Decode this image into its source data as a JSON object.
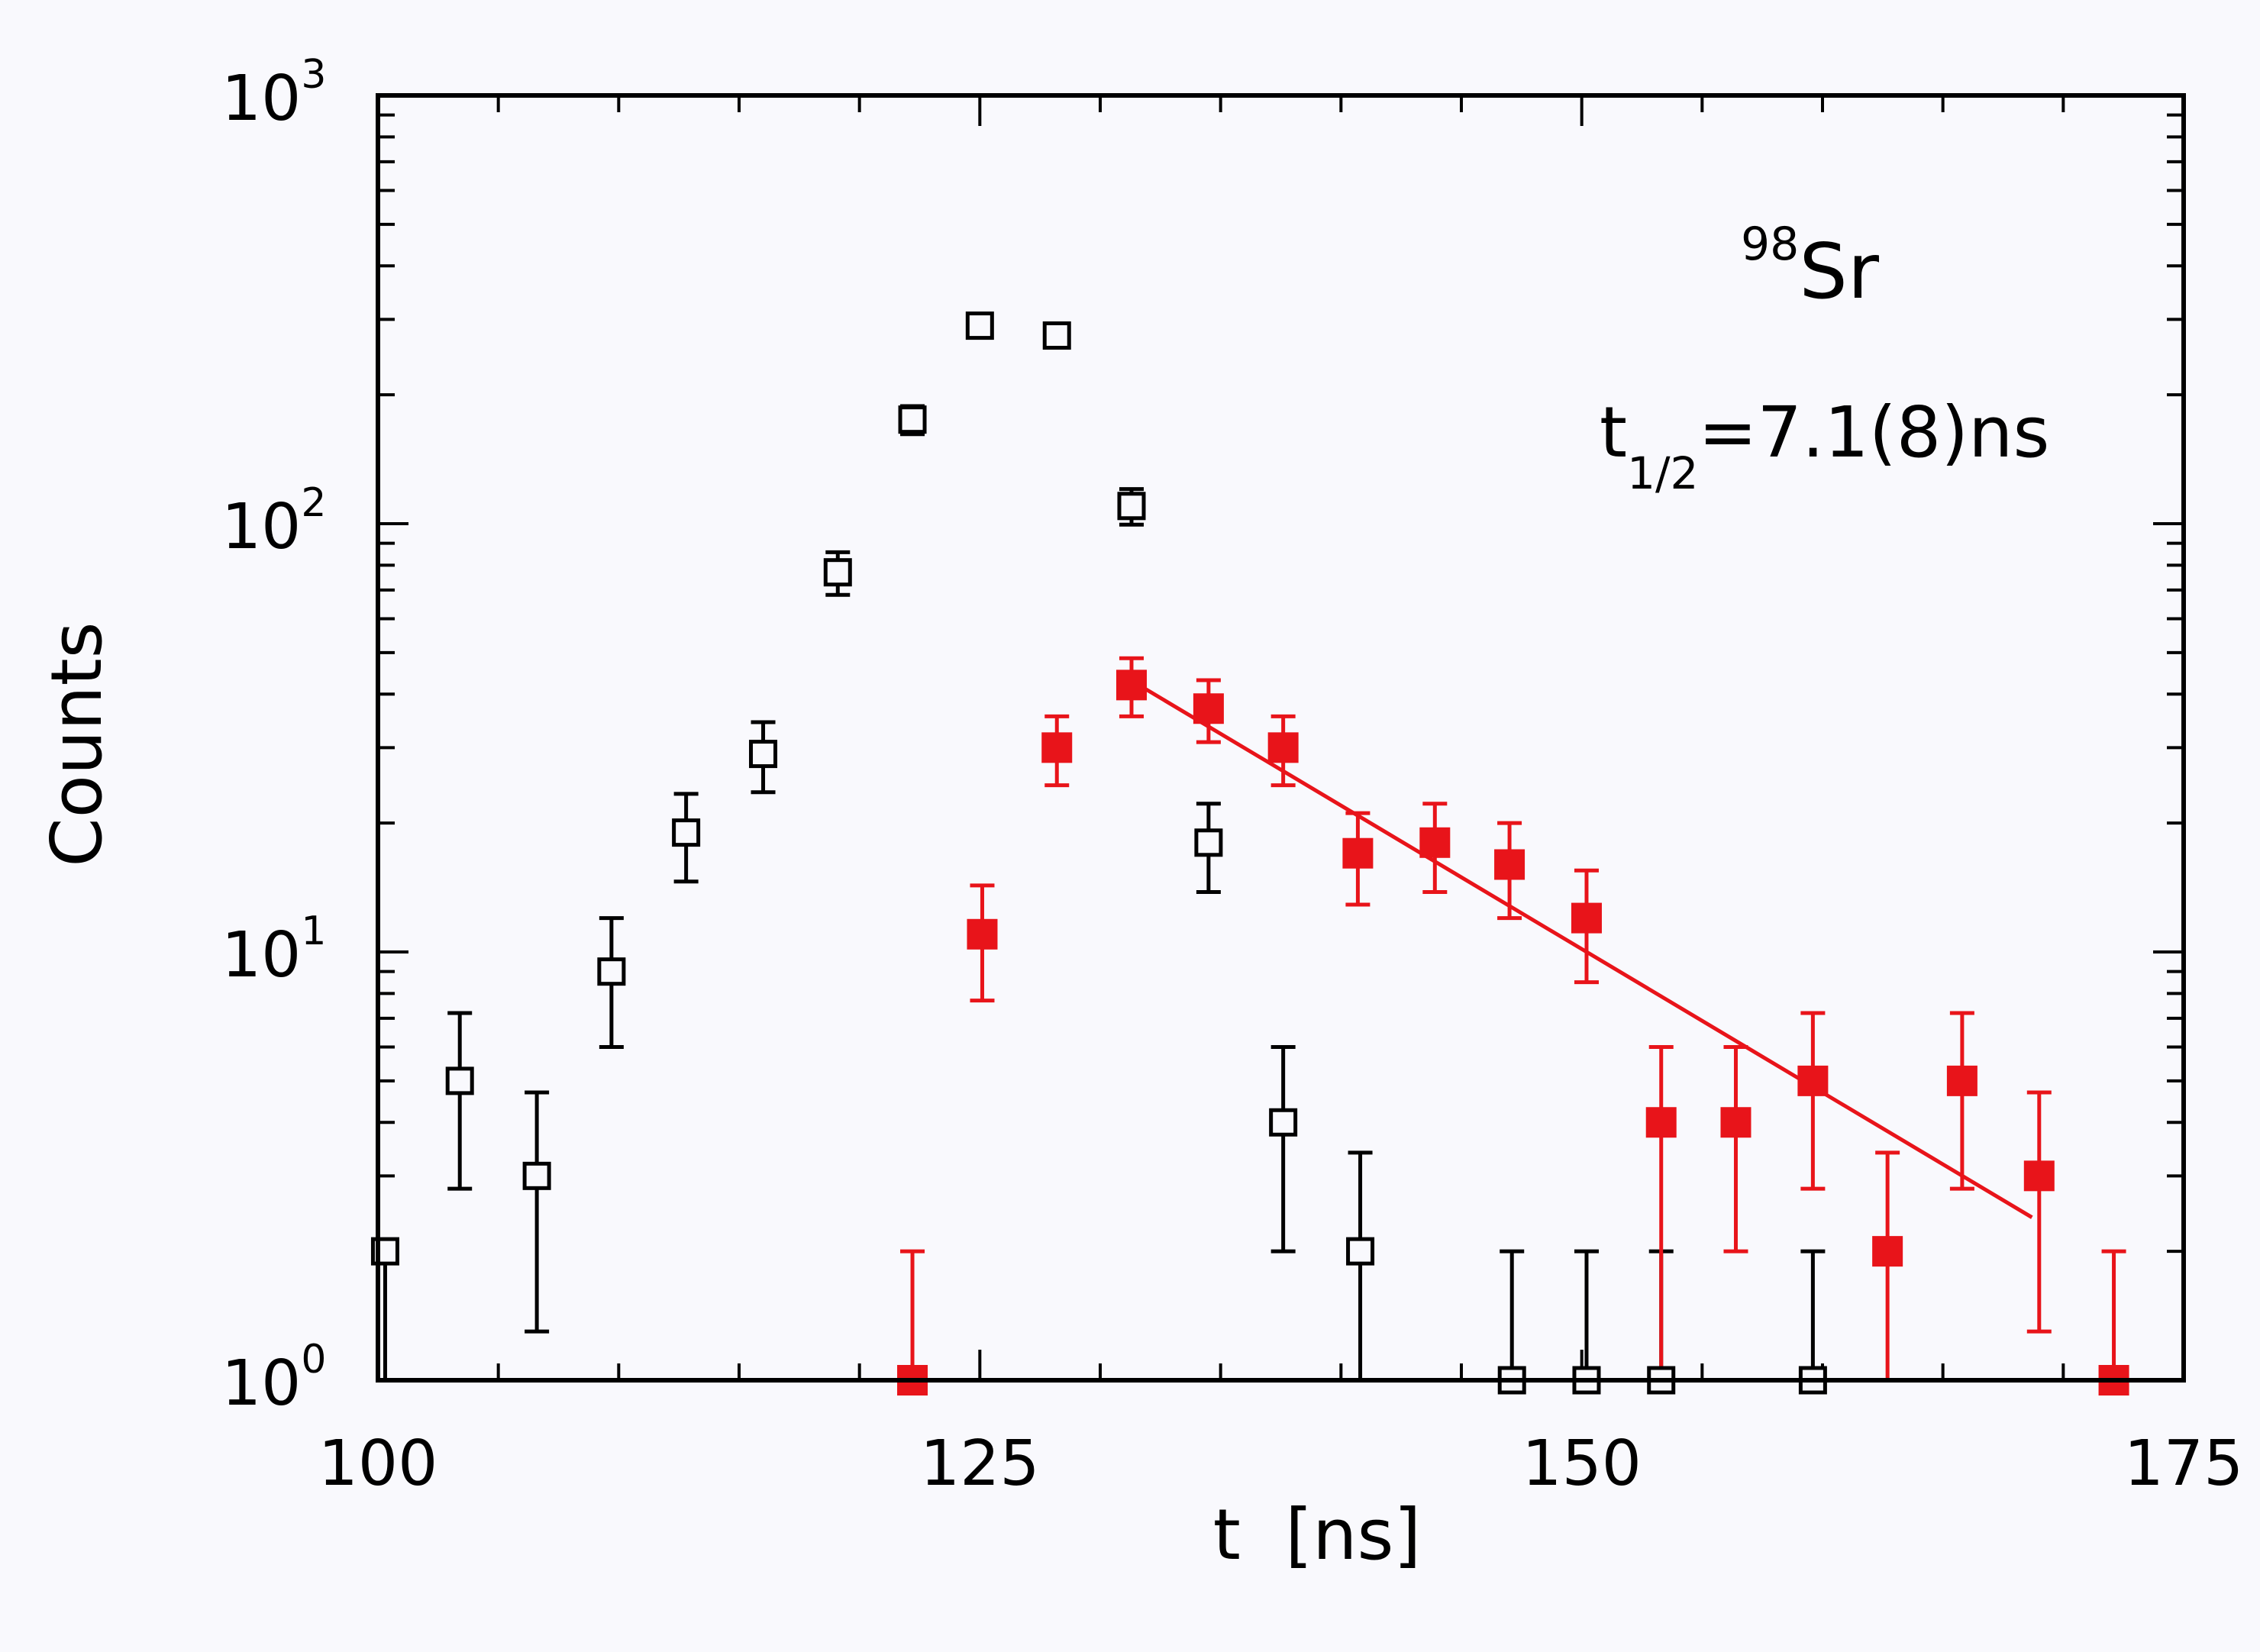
{
  "chart_data": {
    "type": "scatter",
    "title": "",
    "xlabel": "t  [ns]",
    "ylabel": "Counts",
    "xlim": [
      100,
      175
    ],
    "ylim": [
      1,
      1000
    ],
    "yscale": "log",
    "grid": false,
    "x_ticks": [
      {
        "value": 100,
        "label": "100"
      },
      {
        "value": 125,
        "label": "125"
      },
      {
        "value": 150,
        "label": "150"
      },
      {
        "value": 175,
        "label": "175"
      }
    ],
    "y_ticks": [
      {
        "value": 1,
        "base": "10",
        "exp": "0"
      },
      {
        "value": 10,
        "base": "10",
        "exp": "1"
      },
      {
        "value": 100,
        "base": "10",
        "exp": "2"
      },
      {
        "value": 1000,
        "base": "10",
        "exp": "3"
      }
    ],
    "annotations": {
      "isotope_mass": "98",
      "isotope_symbol": "Sr",
      "halflife_t": "t",
      "halflife_sub": "1/2",
      "halflife_value": "=7.1(8)ns"
    },
    "series": [
      {
        "marker": "open-square",
        "color": "#000000",
        "points": [
          {
            "x": 100.3,
            "y": 2,
            "lo": 1,
            "hi": 2
          },
          {
            "x": 103.4,
            "y": 5,
            "lo": 2.8,
            "hi": 7.2
          },
          {
            "x": 106.6,
            "y": 3,
            "lo": 1.3,
            "hi": 4.7
          },
          {
            "x": 109.7,
            "y": 9,
            "lo": 6,
            "hi": 12
          },
          {
            "x": 112.8,
            "y": 19,
            "lo": 14.6,
            "hi": 23.4
          },
          {
            "x": 116,
            "y": 29,
            "lo": 23.6,
            "hi": 34.4
          },
          {
            "x": 119.1,
            "y": 77,
            "lo": 68.2,
            "hi": 85.8
          },
          {
            "x": 122.2,
            "y": 175,
            "lo": 161.8,
            "hi": 188.2
          },
          {
            "x": 125,
            "y": 290,
            "lo": 273,
            "hi": 307
          },
          {
            "x": 128.2,
            "y": 275,
            "lo": 258.4,
            "hi": 291.6
          },
          {
            "x": 131.3,
            "y": 110,
            "lo": 99.5,
            "hi": 120.5
          },
          {
            "x": 134.5,
            "y": 18,
            "lo": 13.8,
            "hi": 22.2
          },
          {
            "x": 137.6,
            "y": 4,
            "lo": 2,
            "hi": 6
          },
          {
            "x": 140.8,
            "y": 2,
            "lo": 1,
            "hi": 3.4
          },
          {
            "x": 147.1,
            "y": 1,
            "lo": 1,
            "hi": 2
          },
          {
            "x": 150.2,
            "y": 1,
            "lo": 1,
            "hi": 2
          },
          {
            "x": 153.3,
            "y": 1,
            "lo": 1,
            "hi": 2
          },
          {
            "x": 159.6,
            "y": 1,
            "lo": 1,
            "hi": 2
          }
        ]
      },
      {
        "marker": "filled-square",
        "color": "#e8141a",
        "points": [
          {
            "x": 122.2,
            "y": 1,
            "lo": 1,
            "hi": 2
          },
          {
            "x": 125.1,
            "y": 11,
            "lo": 7.7,
            "hi": 14.3
          },
          {
            "x": 128.2,
            "y": 30,
            "lo": 24.5,
            "hi": 35.5
          },
          {
            "x": 131.3,
            "y": 42,
            "lo": 35.5,
            "hi": 48.5
          },
          {
            "x": 134.5,
            "y": 37,
            "lo": 30.9,
            "hi": 43.1
          },
          {
            "x": 137.6,
            "y": 30,
            "lo": 24.5,
            "hi": 35.5
          },
          {
            "x": 140.7,
            "y": 17,
            "lo": 12.9,
            "hi": 21.1
          },
          {
            "x": 143.9,
            "y": 18,
            "lo": 13.8,
            "hi": 22.2
          },
          {
            "x": 147,
            "y": 16,
            "lo": 12,
            "hi": 20
          },
          {
            "x": 150.2,
            "y": 12,
            "lo": 8.5,
            "hi": 15.5
          },
          {
            "x": 153.3,
            "y": 4,
            "lo": 1,
            "hi": 6
          },
          {
            "x": 156.4,
            "y": 4,
            "lo": 2,
            "hi": 6
          },
          {
            "x": 159.6,
            "y": 5,
            "lo": 2.8,
            "hi": 7.2
          },
          {
            "x": 162.7,
            "y": 2,
            "lo": 1,
            "hi": 3.4
          },
          {
            "x": 165.8,
            "y": 5,
            "lo": 2.8,
            "hi": 7.2
          },
          {
            "x": 169,
            "y": 3,
            "lo": 1.3,
            "hi": 4.7
          },
          {
            "x": 172.1,
            "y": 1,
            "lo": 1,
            "hi": 2
          }
        ]
      }
    ],
    "fit": {
      "color": "#e8141a",
      "points": [
        {
          "x": 131.3,
          "y": 43
        },
        {
          "x": 168.7,
          "y": 2.4
        }
      ]
    }
  }
}
